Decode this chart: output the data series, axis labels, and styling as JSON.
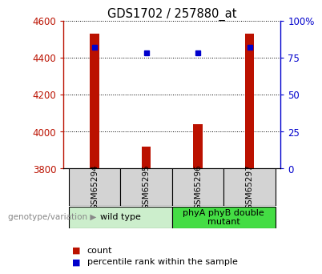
{
  "title": "GDS1702 / 257880_at",
  "samples": [
    "GSM65294",
    "GSM65295",
    "GSM65296",
    "GSM65297"
  ],
  "counts": [
    4530,
    3920,
    4040,
    4530
  ],
  "percentiles": [
    82,
    78,
    78,
    82
  ],
  "ylim_left": [
    3800,
    4600
  ],
  "yticks_left": [
    3800,
    4000,
    4200,
    4400,
    4600
  ],
  "ylim_right": [
    0,
    100
  ],
  "yticks_right": [
    0,
    25,
    50,
    75,
    100
  ],
  "yticklabels_right": [
    "0",
    "25",
    "50",
    "75",
    "100%"
  ],
  "bar_color": "#bb1100",
  "dot_color": "#0000cc",
  "groups": [
    {
      "label": "wild type",
      "indices": [
        0,
        1
      ],
      "color": "#cceecc"
    },
    {
      "label": "phyA phyB double\nmutant",
      "indices": [
        2,
        3
      ],
      "color": "#44dd44"
    }
  ],
  "legend_count_color": "#bb1100",
  "legend_dot_color": "#0000cc",
  "legend_count_label": "count",
  "legend_dot_label": "percentile rank within the sample",
  "genotype_label": "genotype/variation",
  "bar_bottom": 3800,
  "bar_width": 0.18
}
